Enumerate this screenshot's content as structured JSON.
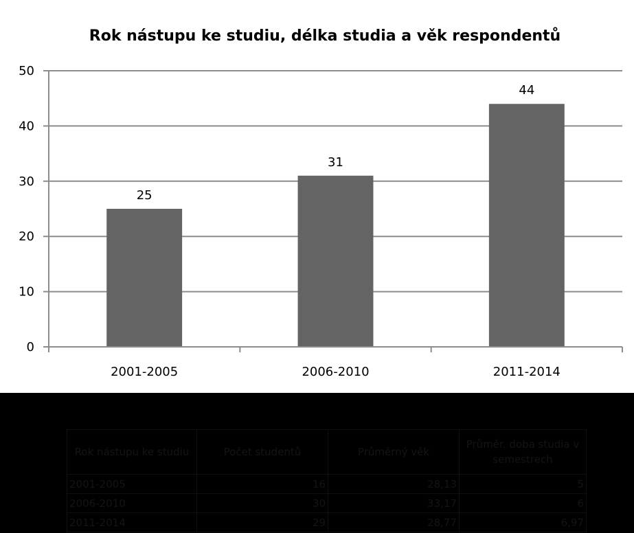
{
  "chart_data": {
    "type": "bar",
    "title": "Rok nástupu ke studiu, délka studia a věk respondentů",
    "categories": [
      "2001-2005",
      "2006-2010",
      "2011-2014"
    ],
    "values": [
      25,
      31,
      44
    ],
    "data_labels": [
      "25",
      "31",
      "44"
    ],
    "y_ticks": [
      "0",
      "10",
      "20",
      "30",
      "40",
      "50"
    ],
    "ylim": [
      0,
      50
    ],
    "xlabel": "",
    "ylabel": "",
    "grid": true,
    "legend": "none",
    "bar_color": "#646464",
    "grid_color": "#8c8c8c"
  },
  "table": {
    "headers": [
      "Rok nástupu ke studiu",
      "Počet studentů",
      "Průměrný věk",
      "Průměr. doba studia v semestrech"
    ],
    "rows": [
      [
        "2001-2005",
        "16",
        "28,13",
        "5"
      ],
      [
        "2006-2010",
        "30",
        "33,17",
        "6"
      ],
      [
        "2011-2014",
        "29",
        "28,77",
        "6,97"
      ]
    ]
  }
}
